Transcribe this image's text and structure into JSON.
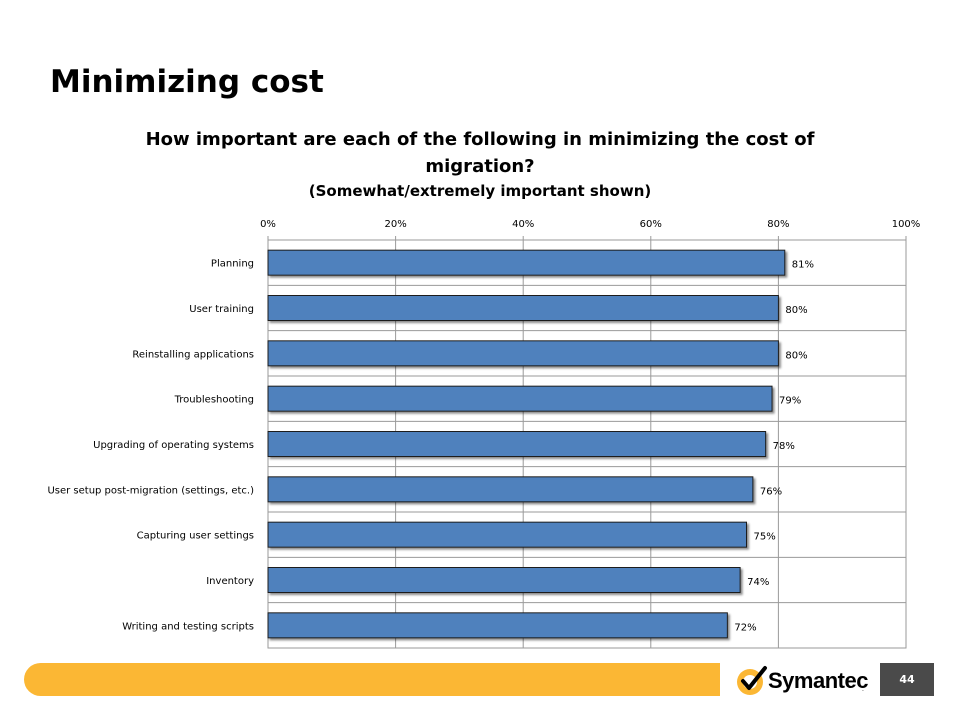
{
  "slide": {
    "title": "Minimizing cost",
    "page_number": "44"
  },
  "brand": {
    "name": "Symantec",
    "suffix": ".",
    "accent_color": "#FBB734",
    "bar_color": "#4F81BD"
  },
  "chart_data": {
    "type": "bar",
    "orientation": "horizontal",
    "title": "How important are each of the following in minimizing the cost of migration?",
    "subtitle": "(Somewhat/extremely important shown)",
    "categories": [
      "Planning",
      "User training",
      "Reinstalling applications",
      "Troubleshooting",
      "Upgrading of operating systems",
      "User setup post-migration (settings, etc.)",
      "Capturing user settings",
      "Inventory",
      "Writing and testing scripts"
    ],
    "values": [
      81,
      80,
      80,
      79,
      78,
      76,
      75,
      74,
      72
    ],
    "data_labels": [
      "81%",
      "80%",
      "80%",
      "79%",
      "78%",
      "76%",
      "75%",
      "74%",
      "72%"
    ],
    "xlim": [
      0,
      100
    ],
    "x_ticks": [
      "0%",
      "20%",
      "40%",
      "60%",
      "80%",
      "100%"
    ],
    "x_axis_position": "top",
    "grid": true
  }
}
